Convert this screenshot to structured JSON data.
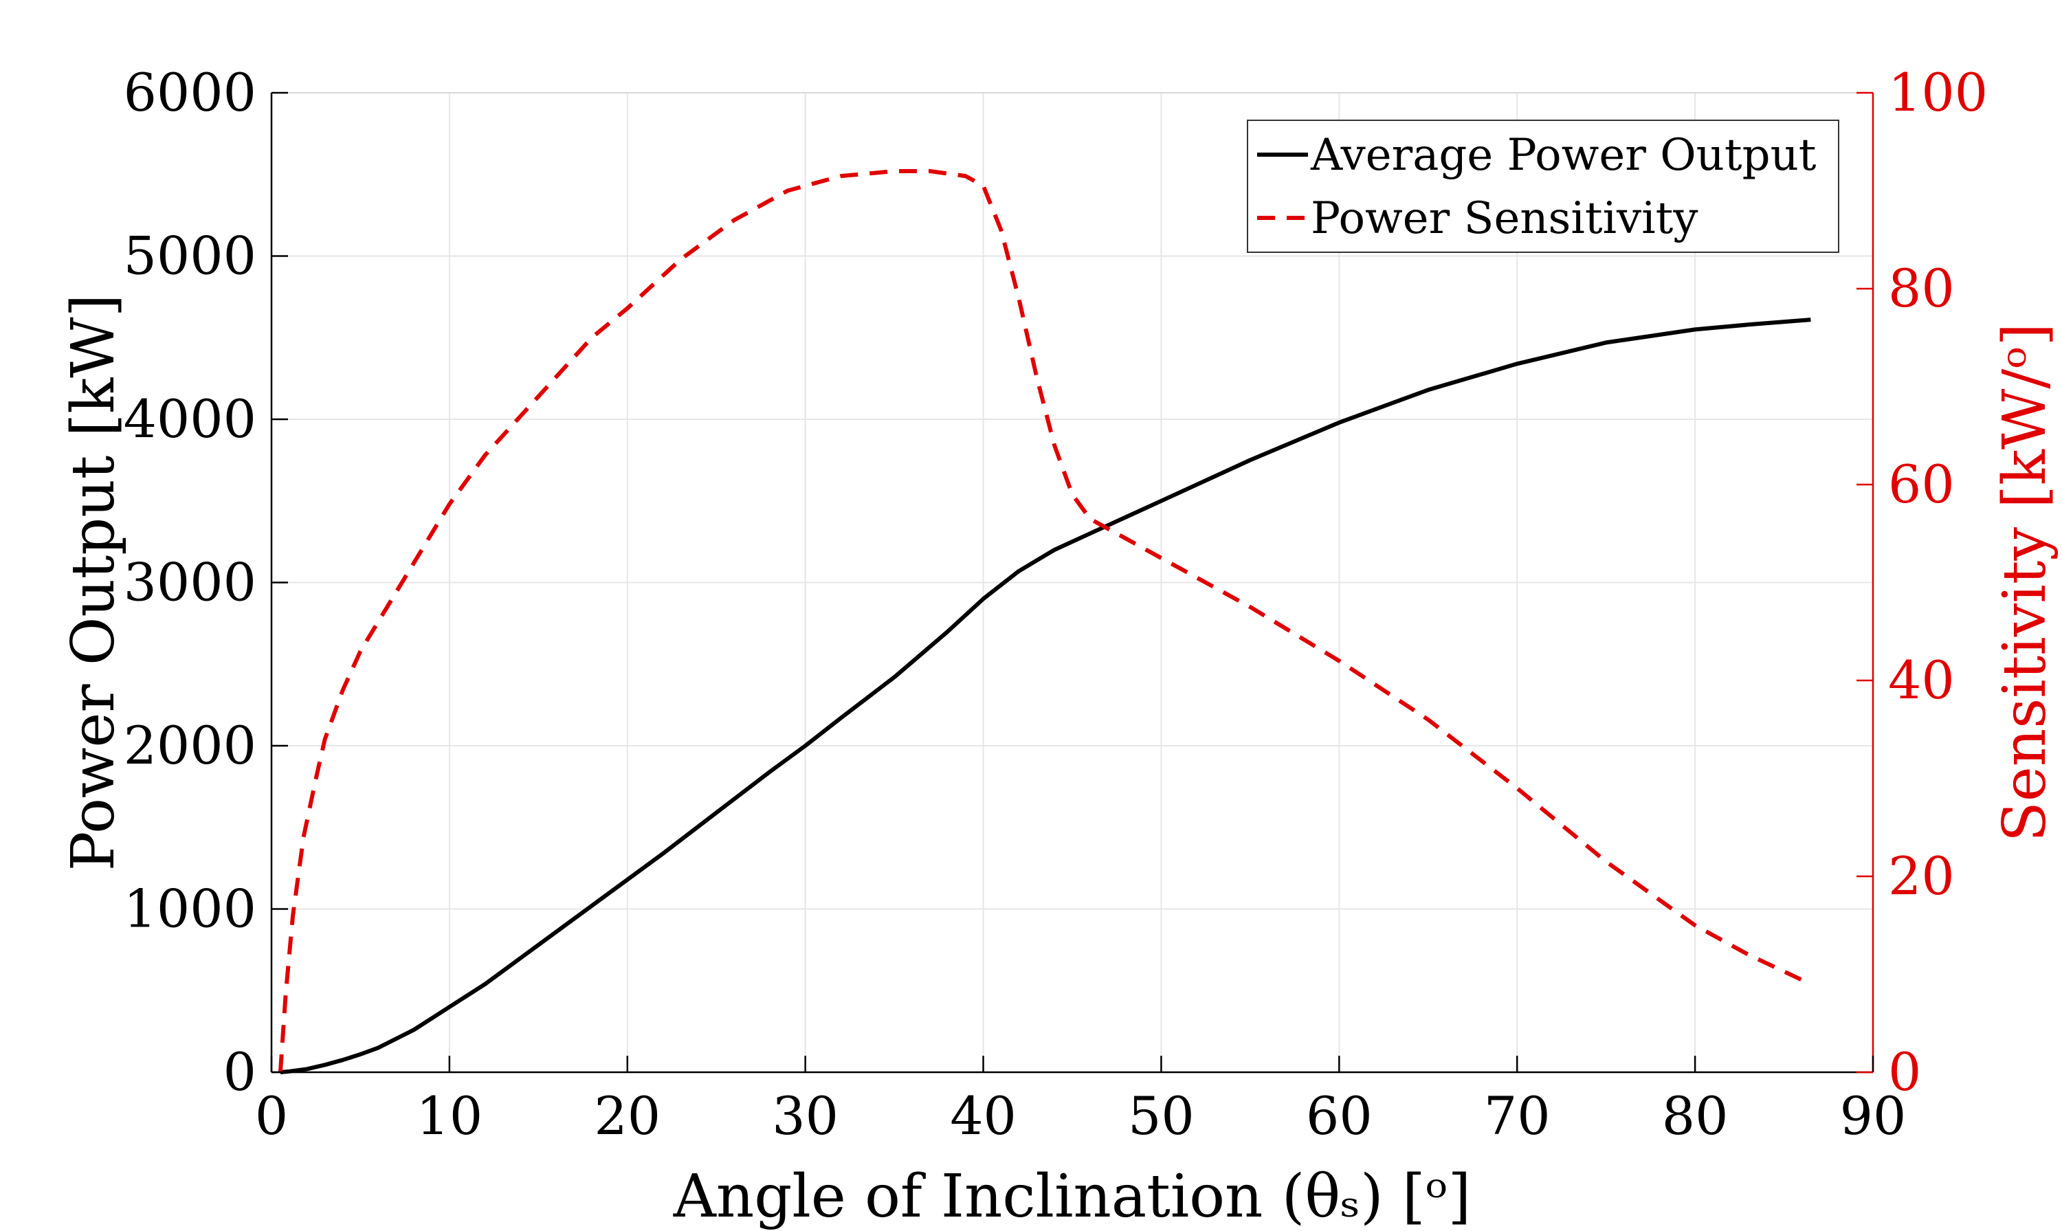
{
  "chart_data": {
    "type": "line",
    "title": "",
    "xlabel": "Angle of Inclination (θₛ) [ᵒ]",
    "ylabel_left": "Power Output [kW]",
    "ylabel_right": "Sensitivity [kW/ᵒ]",
    "xlim": [
      0,
      90
    ],
    "ylim_left": [
      0,
      6000
    ],
    "ylim_right": [
      0,
      100
    ],
    "x_ticks": [
      0,
      10,
      20,
      30,
      40,
      50,
      60,
      70,
      80,
      90
    ],
    "y_left_ticks": [
      0,
      1000,
      2000,
      3000,
      4000,
      5000,
      6000
    ],
    "y_right_ticks": [
      0,
      20,
      40,
      60,
      80,
      100
    ],
    "grid": true,
    "legend_position": "top-right",
    "colors": {
      "left_axis": "#000000",
      "right_axis": "#e00000",
      "grid": "#e6e6e6"
    },
    "series": [
      {
        "name": "Average Power Output",
        "axis": "left",
        "style": "solid",
        "color": "#000000",
        "x": [
          0.5,
          1,
          2,
          3,
          4,
          5,
          6,
          8,
          10,
          12,
          15,
          18,
          20,
          22,
          25,
          28,
          30,
          32,
          35,
          38,
          40,
          42,
          44,
          46,
          48,
          50,
          55,
          60,
          65,
          70,
          75,
          80,
          83,
          86.5
        ],
        "y": [
          0,
          5,
          20,
          45,
          75,
          110,
          150,
          260,
          400,
          540,
          780,
          1020,
          1180,
          1340,
          1590,
          1840,
          2000,
          2170,
          2420,
          2700,
          2900,
          3070,
          3200,
          3300,
          3400,
          3500,
          3750,
          3980,
          4180,
          4340,
          4470,
          4550,
          4580,
          4610
        ]
      },
      {
        "name": "Power Sensitivity",
        "axis": "right",
        "style": "dashed",
        "color": "#e00000",
        "x": [
          0.5,
          0.8,
          1.2,
          1.8,
          2.5,
          3,
          4,
          5,
          6,
          8,
          10,
          12,
          15,
          18,
          20,
          23,
          26,
          29,
          32,
          35,
          37,
          39,
          40,
          41,
          42,
          43,
          44,
          45,
          46,
          48,
          50,
          55,
          60,
          65,
          70,
          75,
          80,
          83,
          86.5
        ],
        "y": [
          0,
          8,
          16,
          24,
          30,
          34,
          39,
          43,
          46,
          52,
          58,
          63,
          69,
          75,
          78,
          83,
          87,
          90,
          91.5,
          92,
          92,
          91.5,
          90.5,
          86,
          79,
          71,
          64,
          59,
          56.5,
          54.5,
          52.5,
          47.5,
          42,
          36,
          29,
          21.5,
          15,
          12,
          9
        ]
      }
    ]
  }
}
